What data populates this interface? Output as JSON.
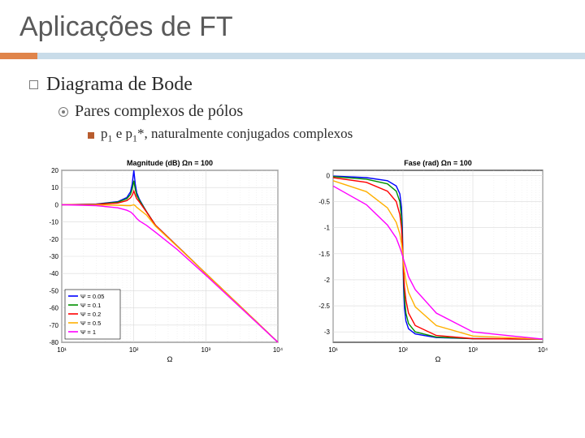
{
  "slide_title": "Aplicações de FT",
  "bullet_level1": "Diagrama de Bode",
  "bullet_level2": "Pares complexos de pólos",
  "bullet_level3_prefix": "p",
  "bullet_level3_sub1": "1",
  "bullet_level3_mid": " e p",
  "bullet_level3_sub2": "1",
  "bullet_level3_suffix": "*, naturalmente conjugados complexos",
  "accent_color_left": "#e0844a",
  "accent_color_right": "#c9dce9",
  "magnitude_chart": {
    "type": "line",
    "title": "Magnitude (dB)   Ωn = 100",
    "xlabel": "Ω",
    "xscale": "log",
    "xlim": [
      10,
      10000
    ],
    "xticks": [
      10,
      100,
      1000,
      10000
    ],
    "xtick_labels": [
      "10¹",
      "10²",
      "10³",
      "10⁴"
    ],
    "ylim": [
      -80,
      20
    ],
    "yticks": [
      -80,
      -70,
      -60,
      -50,
      -40,
      -30,
      -20,
      -10,
      0,
      10,
      20
    ],
    "background_color": "#ffffff",
    "grid_color": "#d9d9d9",
    "axis_color": "#000000",
    "title_fontsize": 9,
    "tick_fontsize": 8,
    "line_width": 1.4,
    "legend": {
      "position": "lower-left",
      "border_color": "#000000",
      "items": [
        {
          "label": "Ψ = 0.05",
          "color": "#0000ff"
        },
        {
          "label": "Ψ = 0.1",
          "color": "#009000"
        },
        {
          "label": "Ψ = 0.2",
          "color": "#ff0000"
        },
        {
          "label": "Ψ = 0.5",
          "color": "#ffb000"
        },
        {
          "label": "Ψ = 1",
          "color": "#ff00ff"
        }
      ]
    },
    "series": [
      {
        "color": "#0000ff",
        "x": [
          10,
          30,
          60,
          80,
          90,
          95,
          100,
          105,
          110,
          120,
          150,
          200,
          400,
          1000,
          4000,
          10000
        ],
        "y": [
          0,
          0.4,
          1.8,
          4.2,
          7.5,
          12,
          20,
          12,
          7,
          3,
          -4,
          -12,
          -24,
          -40,
          -64,
          -80
        ]
      },
      {
        "color": "#009000",
        "x": [
          10,
          30,
          60,
          80,
          90,
          95,
          100,
          105,
          110,
          120,
          150,
          200,
          400,
          1000,
          4000,
          10000
        ],
        "y": [
          0,
          0.3,
          1.5,
          3.5,
          6,
          9,
          14,
          9,
          5.5,
          2.5,
          -4,
          -12,
          -24,
          -40,
          -64,
          -80
        ]
      },
      {
        "color": "#ff0000",
        "x": [
          10,
          30,
          60,
          80,
          90,
          95,
          100,
          105,
          110,
          120,
          150,
          200,
          400,
          1000,
          4000,
          10000
        ],
        "y": [
          0,
          0.2,
          1,
          2.4,
          4,
          5.5,
          8,
          5.5,
          3.5,
          1.5,
          -4.2,
          -12,
          -24,
          -40,
          -64,
          -80
        ]
      },
      {
        "color": "#ffb000",
        "x": [
          10,
          30,
          60,
          80,
          90,
          95,
          100,
          105,
          110,
          120,
          150,
          200,
          400,
          1000,
          4000,
          10000
        ],
        "y": [
          0,
          -0.1,
          -0.3,
          -0.5,
          -0.5,
          -0.3,
          0,
          -0.6,
          -1.5,
          -2.8,
          -6,
          -12.5,
          -24.2,
          -40,
          -64,
          -80
        ]
      },
      {
        "color": "#ff00ff",
        "x": [
          10,
          30,
          60,
          80,
          90,
          95,
          100,
          105,
          110,
          120,
          150,
          200,
          400,
          1000,
          4000,
          10000
        ],
        "y": [
          0,
          -0.5,
          -1.8,
          -3.2,
          -4.2,
          -5,
          -6,
          -7,
          -8,
          -9.5,
          -12,
          -16,
          -26,
          -41,
          -64.5,
          -80
        ]
      }
    ]
  },
  "phase_chart": {
    "type": "line",
    "title": "Fase (rad)   Ωn = 100",
    "xlabel": "Ω",
    "xscale": "log",
    "xlim": [
      10,
      10000
    ],
    "xticks": [
      10,
      100,
      1000,
      10000
    ],
    "xtick_labels": [
      "10¹",
      "10²",
      "10³",
      "10⁴"
    ],
    "ylim": [
      -3.2,
      0.1
    ],
    "yticks": [
      -3,
      -2.5,
      -2,
      -1.5,
      -1,
      -0.5,
      0
    ],
    "background_color": "#ffffff",
    "grid_color": "#d9d9d9",
    "axis_color": "#000000",
    "title_fontsize": 9,
    "tick_fontsize": 8,
    "line_width": 1.4,
    "series": [
      {
        "color": "#0000ff",
        "x": [
          10,
          30,
          60,
          80,
          90,
          95,
          98,
          100,
          102,
          105,
          110,
          120,
          150,
          300,
          1000,
          10000
        ],
        "y": [
          -0.01,
          -0.04,
          -0.1,
          -0.2,
          -0.35,
          -0.6,
          -1.0,
          -1.57,
          -2.14,
          -2.54,
          -2.79,
          -2.94,
          -3.04,
          -3.11,
          -3.13,
          -3.14
        ]
      },
      {
        "color": "#009000",
        "x": [
          10,
          30,
          60,
          80,
          90,
          95,
          98,
          100,
          102,
          105,
          110,
          120,
          150,
          300,
          1000,
          10000
        ],
        "y": [
          -0.02,
          -0.07,
          -0.16,
          -0.3,
          -0.5,
          -0.8,
          -1.2,
          -1.57,
          -1.94,
          -2.34,
          -2.64,
          -2.84,
          -3.0,
          -3.1,
          -3.13,
          -3.14
        ]
      },
      {
        "color": "#ff0000",
        "x": [
          10,
          30,
          60,
          80,
          90,
          95,
          98,
          100,
          102,
          105,
          110,
          120,
          150,
          300,
          1000,
          10000
        ],
        "y": [
          -0.04,
          -0.13,
          -0.3,
          -0.5,
          -0.75,
          -1.0,
          -1.3,
          -1.57,
          -1.84,
          -2.14,
          -2.39,
          -2.64,
          -2.88,
          -3.07,
          -3.13,
          -3.14
        ]
      },
      {
        "color": "#ffb000",
        "x": [
          10,
          30,
          60,
          80,
          90,
          95,
          98,
          100,
          102,
          105,
          110,
          120,
          150,
          300,
          1000,
          10000
        ],
        "y": [
          -0.1,
          -0.31,
          -0.62,
          -0.9,
          -1.12,
          -1.3,
          -1.45,
          -1.57,
          -1.69,
          -1.84,
          -2.02,
          -2.24,
          -2.52,
          -2.88,
          -3.08,
          -3.14
        ]
      },
      {
        "color": "#ff00ff",
        "x": [
          10,
          30,
          60,
          80,
          90,
          95,
          98,
          100,
          102,
          105,
          110,
          120,
          150,
          300,
          1000,
          10000
        ],
        "y": [
          -0.2,
          -0.56,
          -0.95,
          -1.2,
          -1.38,
          -1.47,
          -1.53,
          -1.57,
          -1.61,
          -1.67,
          -1.76,
          -1.94,
          -2.19,
          -2.64,
          -3.0,
          -3.14
        ]
      }
    ]
  }
}
